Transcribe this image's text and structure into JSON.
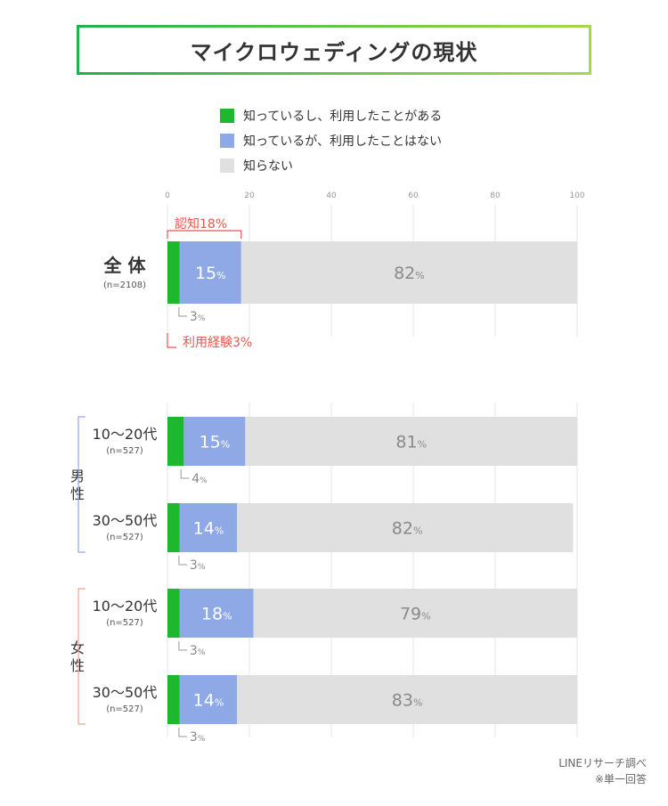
{
  "title": "マイクロウェディングの現状",
  "legend": [
    {
      "label": "知っているし、利用したことがある",
      "color": "#1db82d"
    },
    {
      "label": "知っているが、利用したことはない",
      "color": "#8fa9e6"
    },
    {
      "label": "知らない",
      "color": "#e0e0e0"
    }
  ],
  "footer": {
    "source": "LINEリサーチ調べ",
    "note": "※単一回答"
  },
  "annotations": {
    "awareness": "認知18%",
    "usage": "利用経験3%"
  },
  "groups": {
    "male": "男\n性",
    "female": "女\n性"
  },
  "chart_data": {
    "type": "bar",
    "orientation": "horizontal",
    "stacked": true,
    "xlim": [
      0,
      100
    ],
    "xticks": [
      0,
      20,
      40,
      60,
      80,
      100
    ],
    "unit": "%",
    "categories": [
      {
        "label": "全 体",
        "n": "(n=2108)",
        "group": ""
      },
      {
        "label": "10〜20代",
        "n": "(n=527)",
        "group": "男性"
      },
      {
        "label": "30〜50代",
        "n": "(n=527)",
        "group": "男性"
      },
      {
        "label": "10〜20代",
        "n": "(n=527)",
        "group": "女性"
      },
      {
        "label": "30〜50代",
        "n": "(n=527)",
        "group": "女性"
      }
    ],
    "series": [
      {
        "name": "知っているし、利用したことがある",
        "values": [
          3,
          4,
          3,
          3,
          3
        ],
        "color": "#1db82d"
      },
      {
        "name": "知っているが、利用したことはない",
        "values": [
          15,
          15,
          14,
          18,
          14
        ],
        "color": "#8fa9e6"
      },
      {
        "name": "知らない",
        "values": [
          82,
          81,
          82,
          79,
          83
        ],
        "color": "#e0e0e0"
      }
    ]
  }
}
